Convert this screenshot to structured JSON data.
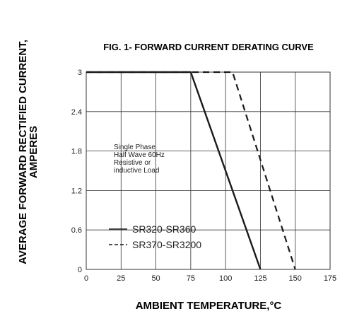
{
  "chart_data": {
    "type": "line",
    "title": "FIG. 1- FORWARD CURRENT DERATING CURVE",
    "xlabel": "AMBIENT TEMPERATURE,°C",
    "ylabel_line1": "AVERAGE FORWARD RECTIFIED CURRENT,",
    "ylabel_line2": "AMPERES",
    "xlim": [
      0,
      175
    ],
    "ylim": [
      0,
      3
    ],
    "x_ticks": [
      "0",
      "25",
      "50",
      "75",
      "100",
      "125",
      "150",
      "175"
    ],
    "y_ticks": [
      "0",
      "0.6",
      "1.2",
      "1.8",
      "2.4",
      "3"
    ],
    "x_tick_values": [
      0,
      25,
      50,
      75,
      100,
      125,
      150,
      175
    ],
    "y_tick_values": [
      0,
      0.6,
      1.2,
      1.8,
      2.4,
      3
    ],
    "grid": true,
    "annotation": [
      "Single Phase",
      "Half Wave 60Hz",
      "Resistive or",
      "inductive Load"
    ],
    "series": [
      {
        "name": "SR320-SR360",
        "style": "solid",
        "x": [
          0,
          75,
          125
        ],
        "y": [
          3,
          3,
          0
        ]
      },
      {
        "name": "SR370-SR3200",
        "style": "dashed",
        "x": [
          0,
          105,
          150
        ],
        "y": [
          3,
          3,
          0
        ]
      }
    ]
  },
  "colors": {
    "line": "#1a1a1a",
    "grid": "#333333"
  }
}
